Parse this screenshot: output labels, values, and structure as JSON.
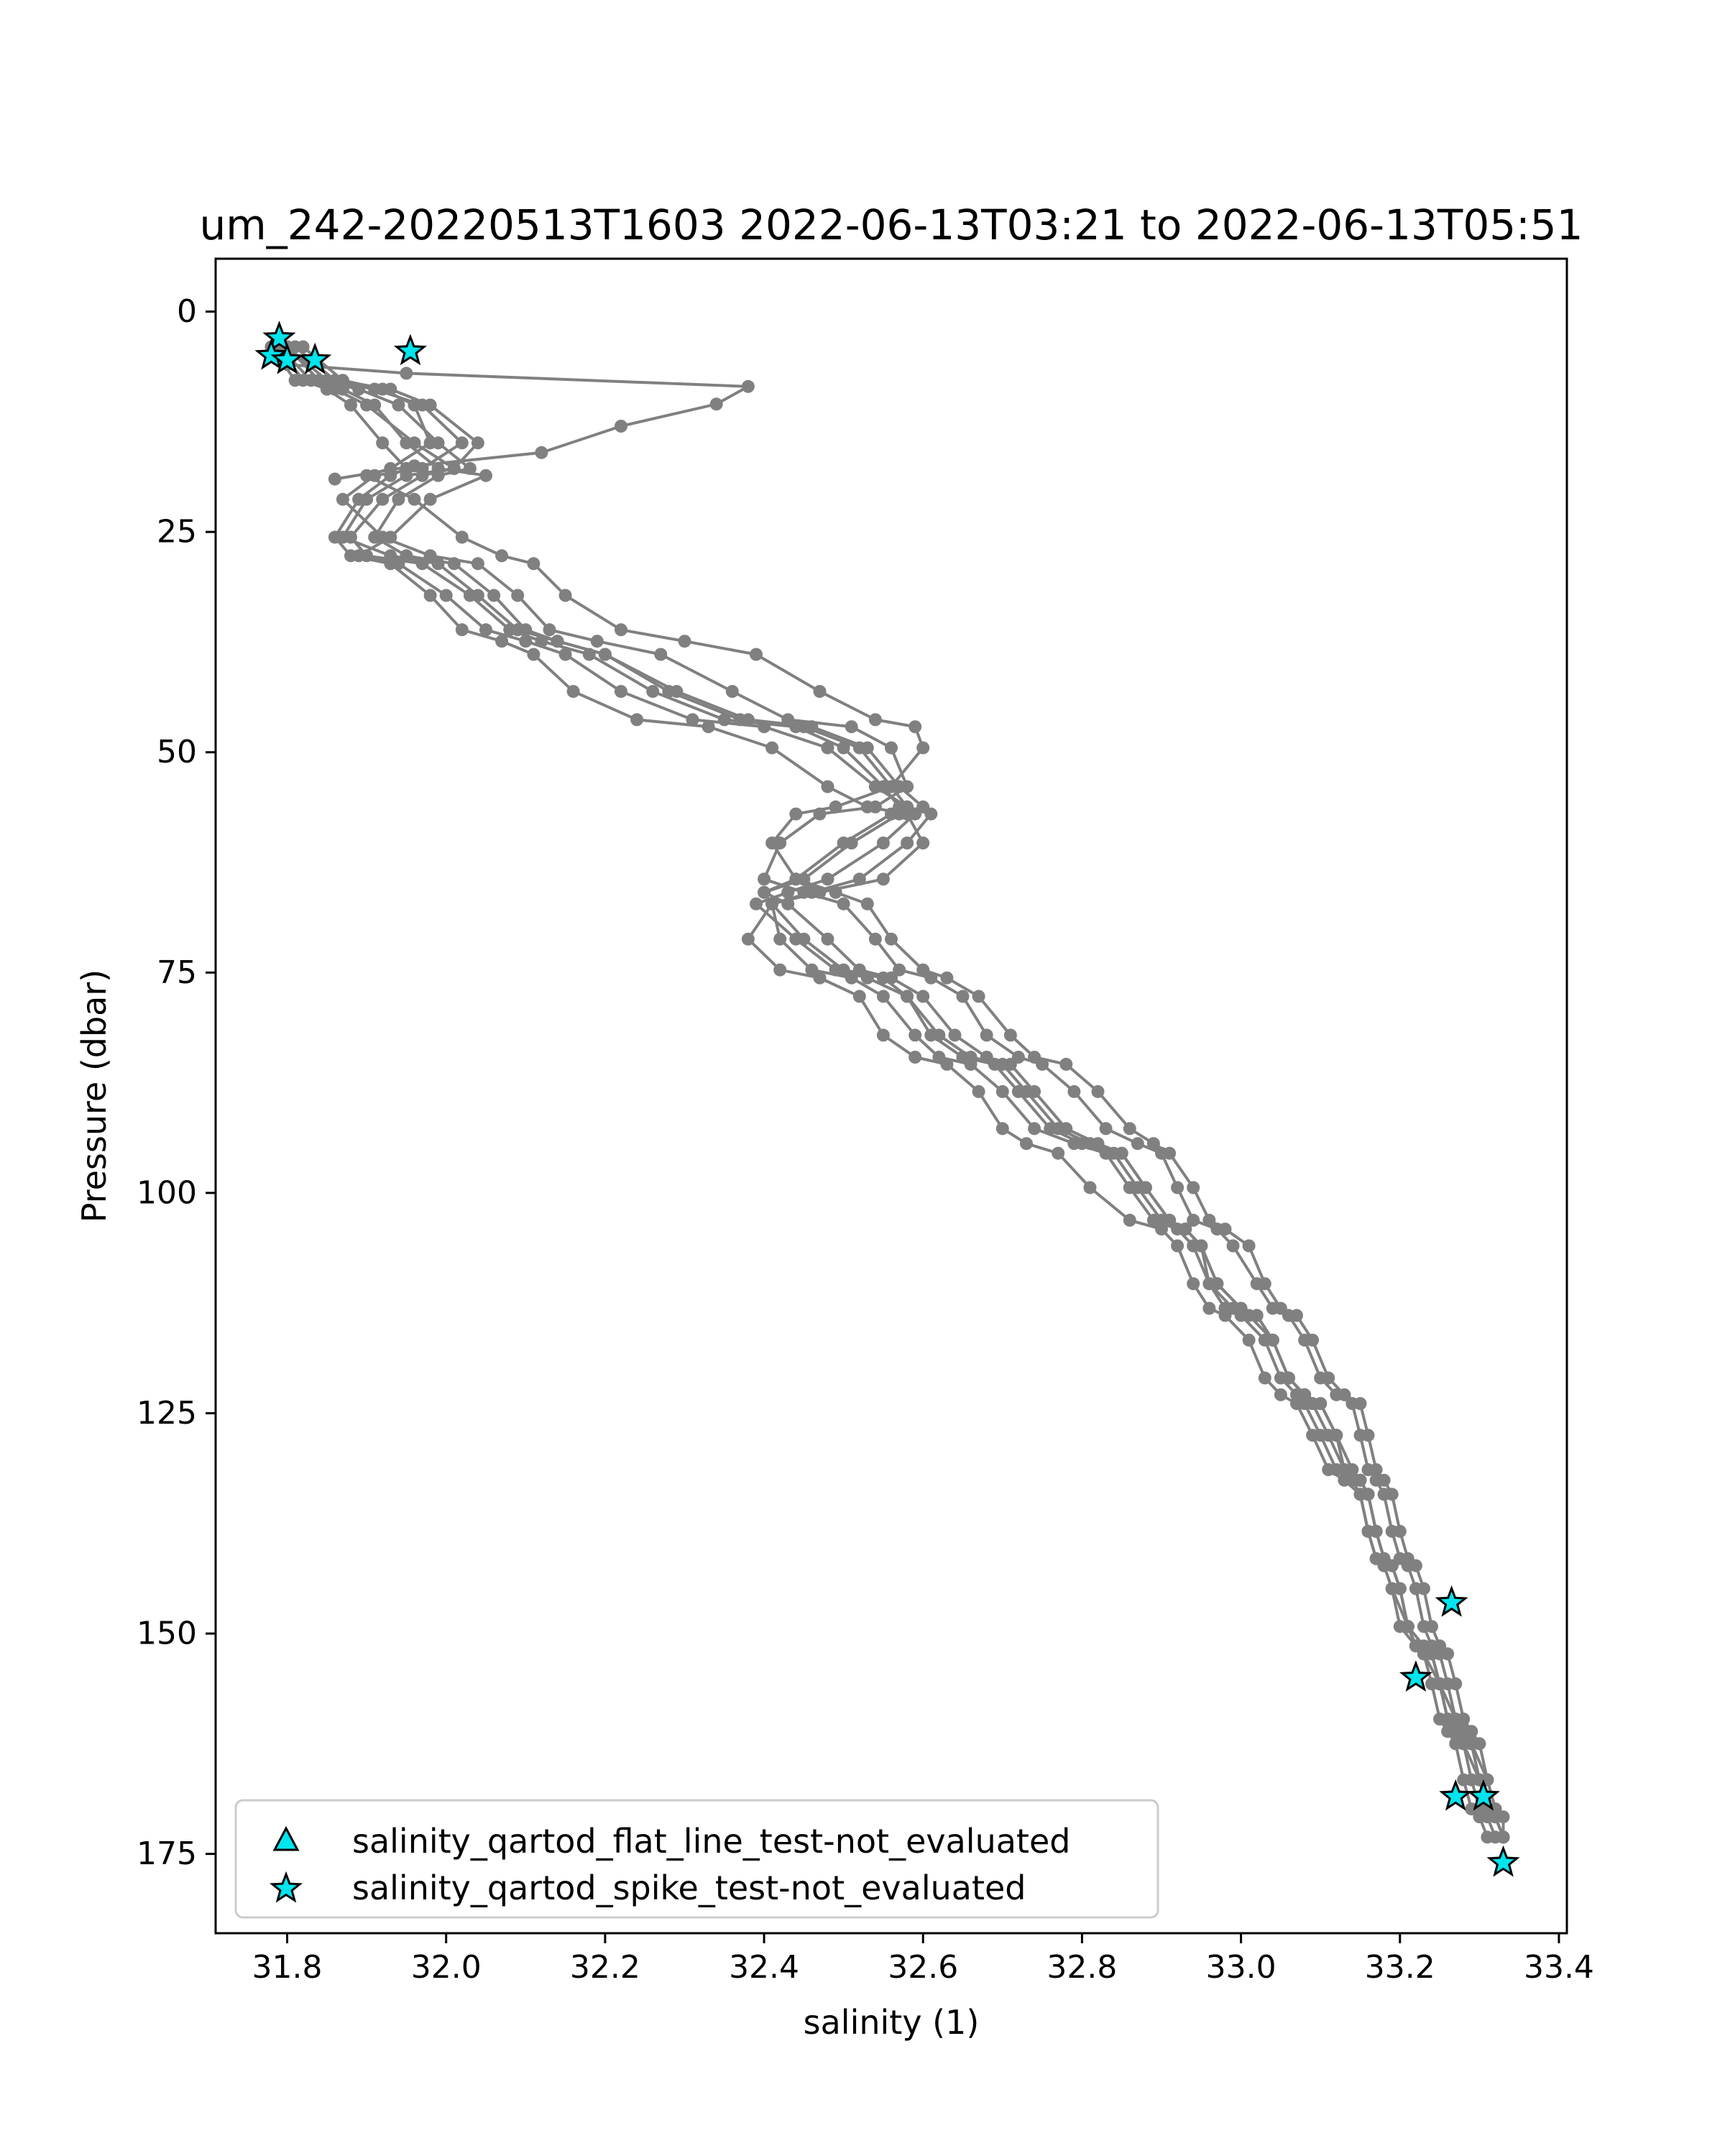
{
  "chart_data": {
    "type": "line",
    "title": "um_242-20220513T1603 2022-06-13T03:21 to 2022-06-13T05:51",
    "xlabel": "salinity (1)",
    "ylabel": "Pressure (dbar)",
    "xlim": [
      31.71,
      33.41
    ],
    "ylim": [
      184,
      -6
    ],
    "y_inverted": true,
    "grid": false,
    "xticks": [
      31.8,
      32.0,
      32.2,
      32.4,
      32.6,
      32.8,
      33.0,
      33.2,
      33.4
    ],
    "xtick_labels": [
      "31.8",
      "32.0",
      "32.2",
      "32.4",
      "32.6",
      "32.8",
      "33.0",
      "33.2",
      "33.4"
    ],
    "yticks": [
      0,
      25,
      50,
      75,
      100,
      125,
      150,
      175
    ],
    "ytick_labels": [
      "0",
      "25",
      "50",
      "75",
      "100",
      "125",
      "150",
      "175"
    ],
    "line_color": "#808080",
    "marker_color": "#00e5ee",
    "legend_position": "lower-left",
    "series": [
      {
        "x": [
          31.79,
          31.82,
          31.85,
          31.88,
          31.92,
          31.95,
          31.93,
          31.89,
          31.86,
          31.88,
          31.93,
          31.98,
          32.02,
          32.07,
          32.11,
          32.16,
          32.24,
          32.33,
          32.41,
          32.48,
          32.53,
          32.58,
          32.6,
          32.55,
          32.47,
          32.41,
          32.38,
          32.42,
          32.47,
          32.52,
          32.55,
          32.59,
          32.63,
          32.67,
          32.7,
          32.73,
          32.77,
          32.81,
          32.86,
          32.9,
          32.92,
          32.94,
          32.96,
          32.98,
          33.01,
          33.03,
          33.05,
          33.07,
          33.09,
          33.11,
          33.13,
          33.15,
          33.16,
          33.17,
          33.18,
          33.19,
          33.21,
          33.22,
          33.24,
          33.25,
          33.26,
          33.27,
          33.28,
          33.3,
          33.31,
          33.32,
          33.33
        ]
      },
      {
        "x": [
          31.8,
          31.84,
          31.89,
          31.94,
          31.99,
          32.03,
          31.99,
          31.94,
          31.91,
          31.95,
          32.01,
          32.06,
          32.1,
          32.14,
          32.2,
          32.28,
          32.37,
          32.45,
          32.52,
          32.56,
          32.58,
          32.56,
          32.5,
          32.44,
          32.4,
          32.43,
          32.48,
          32.52,
          32.56,
          32.6,
          32.64,
          32.68,
          32.71,
          32.74,
          32.78,
          32.82,
          32.85,
          32.88,
          32.91,
          32.93,
          32.95,
          32.97,
          33.0,
          33.02,
          33.04,
          33.06,
          33.08,
          33.1,
          33.12,
          33.14,
          33.15,
          33.16,
          33.17,
          33.18,
          33.19,
          33.2,
          33.21,
          33.22,
          33.23,
          33.25,
          33.26,
          33.28,
          33.29,
          33.31,
          33.32,
          33.33,
          33.33
        ]
      },
      {
        "x": [
          31.78,
          31.81,
          31.86,
          31.9,
          31.96,
          32.01,
          31.97,
          31.92,
          31.88,
          31.9,
          31.97,
          32.03,
          32.08,
          32.12,
          32.18,
          32.26,
          32.35,
          32.44,
          32.5,
          32.55,
          32.57,
          32.59,
          32.55,
          32.48,
          32.43,
          32.39,
          32.44,
          32.49,
          32.53,
          32.58,
          32.61,
          32.65,
          32.69,
          32.72,
          32.76,
          32.8,
          32.84,
          32.87,
          32.9,
          32.93,
          32.95,
          32.96,
          32.99,
          33.01,
          33.04,
          33.06,
          33.08,
          33.09,
          33.11,
          33.13,
          33.15,
          33.16,
          33.17,
          33.18,
          33.19,
          33.2,
          33.21,
          33.23,
          33.24,
          33.25,
          33.27,
          33.28,
          33.29,
          33.3,
          33.31,
          33.32,
          33.33
        ]
      },
      {
        "x": [
          31.79,
          31.83,
          31.87,
          31.91,
          31.95,
          31.99,
          32.05,
          31.98,
          31.93,
          31.89,
          31.94,
          32.0,
          32.05,
          32.1,
          32.15,
          32.22,
          32.31,
          32.4,
          32.48,
          32.54,
          32.58,
          32.61,
          32.58,
          32.52,
          32.46,
          32.41,
          32.42,
          32.46,
          32.51,
          32.55,
          32.59,
          32.62,
          32.66,
          32.7,
          32.74,
          32.79,
          32.83,
          32.86,
          32.89,
          32.92,
          32.94,
          32.96,
          32.98,
          33.0,
          33.03,
          33.05,
          33.07,
          33.08,
          33.1,
          33.12,
          33.14,
          33.15,
          33.16,
          33.17,
          33.18,
          33.19,
          33.2,
          33.22,
          33.23,
          33.24,
          33.25,
          33.26,
          33.27,
          33.28,
          33.29,
          33.3,
          33.31
        ]
      },
      {
        "x": [
          31.8,
          31.85,
          31.91,
          31.97,
          32.02,
          31.97,
          31.91,
          31.87,
          31.92,
          31.98,
          32.04,
          32.09,
          32.13,
          32.19,
          32.27,
          32.36,
          32.43,
          32.51,
          32.56,
          32.58,
          32.54,
          32.47,
          32.42,
          32.4,
          32.45,
          32.5,
          32.54,
          32.57,
          32.61,
          32.65,
          32.68,
          32.72,
          32.75,
          32.79,
          32.83,
          32.87,
          32.9,
          32.92,
          32.94,
          32.97,
          32.99,
          33.02,
          33.04,
          33.06,
          33.08,
          33.1,
          33.12,
          33.14,
          33.15,
          33.16,
          33.17,
          33.18,
          33.19,
          33.2,
          33.21,
          33.22,
          33.23,
          33.24,
          33.25,
          33.26,
          33.27,
          33.28,
          33.29,
          33.3,
          33.31,
          33.32,
          33.33
        ]
      },
      {
        "x": [
          31.81,
          31.86,
          31.93,
          31.98,
          32.04,
          32.01,
          31.95,
          31.9,
          31.87,
          31.93,
          31.99,
          32.04,
          32.09,
          32.14,
          32.2,
          32.29,
          32.38,
          32.46,
          32.53,
          32.57,
          32.6,
          32.57,
          32.51,
          32.45,
          32.4,
          32.41,
          32.45,
          32.5,
          32.55,
          32.58,
          32.62,
          32.66,
          32.7,
          32.73,
          32.77,
          32.81,
          32.85,
          32.88,
          32.91,
          32.93,
          32.95,
          32.97,
          33.0,
          33.02,
          33.04,
          33.06,
          33.08,
          33.1,
          33.12,
          33.13,
          33.15,
          33.16,
          33.17,
          33.18,
          33.19,
          33.2,
          33.21,
          33.22,
          33.24,
          33.25,
          33.26,
          33.27,
          33.28,
          33.29,
          33.3,
          33.31,
          33.32
        ]
      },
      {
        "x": [
          31.82,
          31.87,
          31.92,
          31.96,
          31.98,
          31.93,
          31.9,
          31.96,
          32.02,
          32.07,
          32.11,
          32.15,
          32.22,
          32.3,
          32.39,
          32.47,
          32.54,
          32.59,
          32.6,
          32.56,
          32.49,
          32.44,
          32.41,
          32.44,
          32.49,
          32.53,
          32.56,
          32.6,
          32.63,
          32.67,
          32.71,
          32.74,
          32.78,
          32.82,
          32.86,
          32.89,
          32.91,
          32.94,
          32.96,
          32.98,
          33.01,
          33.03,
          33.05,
          33.07,
          33.09,
          33.11,
          33.13,
          33.15,
          33.16,
          33.17,
          33.18,
          33.19,
          33.2,
          33.21,
          33.22,
          33.23,
          33.24,
          33.25,
          33.26,
          33.27,
          33.28,
          33.29,
          33.3,
          33.31,
          33.32,
          33.32,
          33.33
        ]
      }
    ],
    "surface_excursion": {
      "x": [
        31.8,
        31.95,
        32.38,
        32.34,
        32.22,
        32.12,
        31.96,
        31.86
      ],
      "y": [
        6,
        7,
        8.5,
        10.5,
        13,
        16,
        17.5,
        19
      ]
    },
    "spike_flags": {
      "x": [
        31.79,
        31.78,
        31.8,
        31.835,
        31.955,
        33.265,
        33.22,
        33.27,
        33.305,
        33.33
      ],
      "y": [
        3,
        5,
        5.5,
        5.5,
        4.5,
        146.5,
        155,
        168.5,
        168.5,
        176
      ]
    },
    "flat_line_flags": {
      "x": [],
      "y": []
    },
    "legend": [
      {
        "label": "salinity_qartod_flat_line_test-not_evaluated",
        "marker": "triangle"
      },
      {
        "label": "salinity_qartod_spike_test-not_evaluated",
        "marker": "star"
      }
    ]
  }
}
